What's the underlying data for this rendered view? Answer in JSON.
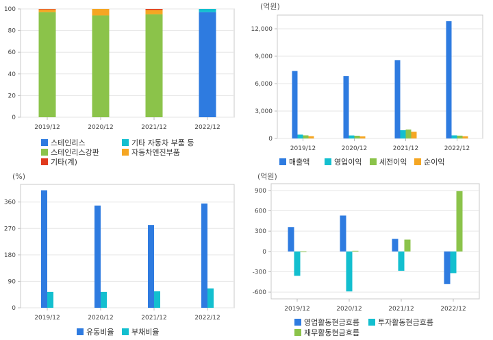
{
  "charts": [
    {
      "id": "composition",
      "type": "stacked-bar",
      "unit": "",
      "categories": [
        "2019/12",
        "2020/12",
        "2021/12",
        "2022/12"
      ],
      "ylim": [
        0,
        100
      ],
      "yticks": [
        "0",
        "20",
        "40",
        "60",
        "80",
        "100"
      ],
      "series": [
        {
          "name": "스테인리스",
          "color": "#2e7be0",
          "values": [
            0,
            0,
            0,
            97
          ]
        },
        {
          "name": "스테인리스강판",
          "color": "#8bc34a",
          "values": [
            97,
            94,
            95,
            0
          ]
        },
        {
          "name": "기타 자동차 부품 등",
          "color": "#13bfcf",
          "values": [
            0,
            0,
            0,
            3
          ]
        },
        {
          "name": "자동차엔진부품",
          "color": "#f5a623",
          "values": [
            2.5,
            6,
            4,
            0
          ]
        },
        {
          "name": "기타(계)",
          "color": "#e03a1e",
          "values": [
            0.5,
            0,
            1,
            0
          ]
        }
      ]
    },
    {
      "id": "income",
      "type": "bar",
      "unit": "(억원)",
      "categories": [
        "2019/12",
        "2020/12",
        "2021/12",
        "2022/12"
      ],
      "ylim": [
        0,
        13500
      ],
      "yticks": [
        "0",
        "3,000",
        "6,000",
        "9,000",
        "12,000"
      ],
      "series": [
        {
          "name": "매출액",
          "color": "#2e7be0",
          "values": [
            7380,
            6820,
            8560,
            12830
          ]
        },
        {
          "name": "영업이익",
          "color": "#13bfcf",
          "values": [
            420,
            330,
            900,
            340
          ]
        },
        {
          "name": "세전이익",
          "color": "#8bc34a",
          "values": [
            340,
            300,
            980,
            310
          ]
        },
        {
          "name": "순이익",
          "color": "#f5a623",
          "values": [
            250,
            230,
            740,
            240
          ]
        }
      ]
    },
    {
      "id": "ratio",
      "type": "bar",
      "unit": "(%)",
      "categories": [
        "2019/12",
        "2020/12",
        "2021/12",
        "2022/12"
      ],
      "ylim": [
        0,
        420
      ],
      "yticks": [
        "0",
        "90",
        "180",
        "270",
        "360"
      ],
      "series": [
        {
          "name": "유동비율",
          "color": "#2e7be0",
          "values": [
            400,
            348,
            282,
            355
          ]
        },
        {
          "name": "부채비율",
          "color": "#13bfcf",
          "values": [
            54,
            54,
            56,
            66
          ]
        }
      ]
    },
    {
      "id": "cashflow",
      "type": "bar",
      "unit": "(억원)",
      "categories": [
        "2019/12",
        "2020/12",
        "2021/12",
        "2022/12"
      ],
      "ylim": [
        -700,
        1000
      ],
      "yticks": [
        "-600",
        "-300",
        "0",
        "300",
        "600",
        "900"
      ],
      "series": [
        {
          "name": "영업활동현금흐름",
          "color": "#2e7be0",
          "values": [
            360,
            530,
            185,
            -480
          ]
        },
        {
          "name": "투자활동현금흐름",
          "color": "#13bfcf",
          "values": [
            -360,
            -590,
            -285,
            -320
          ]
        },
        {
          "name": "재무활동현금흐름",
          "color": "#8bc34a",
          "values": [
            -10,
            10,
            175,
            890
          ]
        }
      ]
    }
  ]
}
